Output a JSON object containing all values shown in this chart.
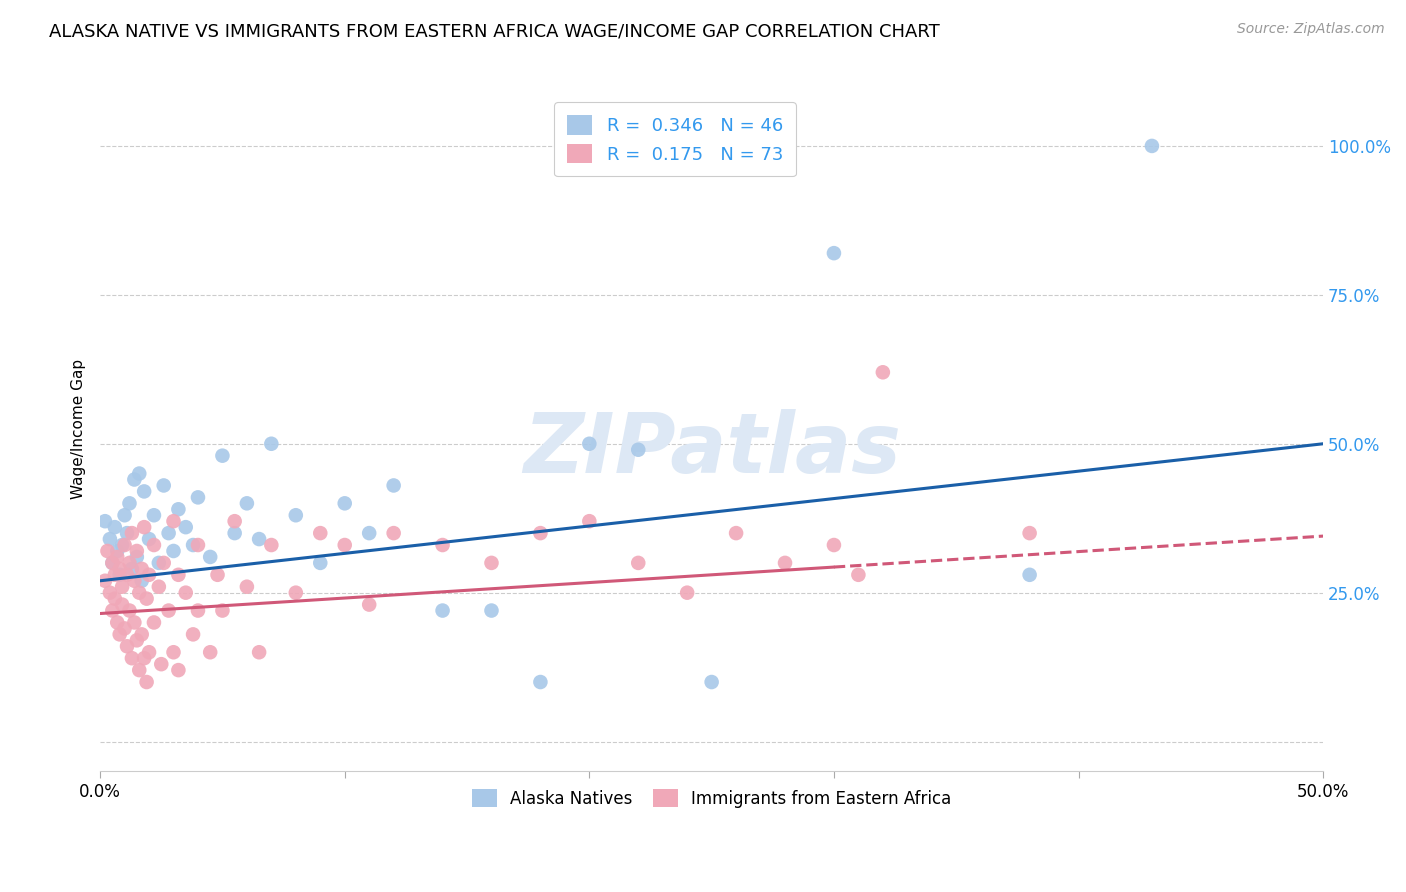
{
  "title": "ALASKA NATIVE VS IMMIGRANTS FROM EASTERN AFRICA WAGE/INCOME GAP CORRELATION CHART",
  "source": "Source: ZipAtlas.com",
  "ylabel": "Wage/Income Gap",
  "watermark": "ZIPatlas",
  "series1": {
    "label": "Alaska Natives",
    "color": "#a8c8e8",
    "line_color": "#1a5fa8",
    "R": 0.346,
    "N": 46,
    "line_start_y": 0.27,
    "line_end_y": 0.5,
    "points": [
      [
        0.002,
        0.37
      ],
      [
        0.004,
        0.34
      ],
      [
        0.005,
        0.3
      ],
      [
        0.006,
        0.36
      ],
      [
        0.007,
        0.32
      ],
      [
        0.008,
        0.28
      ],
      [
        0.009,
        0.33
      ],
      [
        0.01,
        0.38
      ],
      [
        0.011,
        0.35
      ],
      [
        0.012,
        0.4
      ],
      [
        0.013,
        0.29
      ],
      [
        0.014,
        0.44
      ],
      [
        0.015,
        0.31
      ],
      [
        0.016,
        0.45
      ],
      [
        0.017,
        0.27
      ],
      [
        0.018,
        0.42
      ],
      [
        0.02,
        0.34
      ],
      [
        0.022,
        0.38
      ],
      [
        0.024,
        0.3
      ],
      [
        0.026,
        0.43
      ],
      [
        0.028,
        0.35
      ],
      [
        0.03,
        0.32
      ],
      [
        0.032,
        0.39
      ],
      [
        0.035,
        0.36
      ],
      [
        0.038,
        0.33
      ],
      [
        0.04,
        0.41
      ],
      [
        0.045,
        0.31
      ],
      [
        0.05,
        0.48
      ],
      [
        0.055,
        0.35
      ],
      [
        0.06,
        0.4
      ],
      [
        0.065,
        0.34
      ],
      [
        0.07,
        0.5
      ],
      [
        0.08,
        0.38
      ],
      [
        0.09,
        0.3
      ],
      [
        0.1,
        0.4
      ],
      [
        0.11,
        0.35
      ],
      [
        0.12,
        0.43
      ],
      [
        0.14,
        0.22
      ],
      [
        0.16,
        0.22
      ],
      [
        0.18,
        0.1
      ],
      [
        0.2,
        0.5
      ],
      [
        0.22,
        0.49
      ],
      [
        0.25,
        0.1
      ],
      [
        0.3,
        0.82
      ],
      [
        0.38,
        0.28
      ],
      [
        0.43,
        1.0
      ]
    ]
  },
  "series2": {
    "label": "Immigrants from Eastern Africa",
    "color": "#f0a8b8",
    "line_color": "#d05878",
    "R": 0.175,
    "N": 73,
    "line_start_y": 0.215,
    "line_end_y": 0.345,
    "points": [
      [
        0.002,
        0.27
      ],
      [
        0.003,
        0.32
      ],
      [
        0.004,
        0.25
      ],
      [
        0.005,
        0.3
      ],
      [
        0.005,
        0.22
      ],
      [
        0.006,
        0.28
      ],
      [
        0.006,
        0.24
      ],
      [
        0.007,
        0.31
      ],
      [
        0.007,
        0.2
      ],
      [
        0.008,
        0.29
      ],
      [
        0.008,
        0.18
      ],
      [
        0.009,
        0.26
      ],
      [
        0.009,
        0.23
      ],
      [
        0.01,
        0.33
      ],
      [
        0.01,
        0.19
      ],
      [
        0.011,
        0.28
      ],
      [
        0.011,
        0.16
      ],
      [
        0.012,
        0.3
      ],
      [
        0.012,
        0.22
      ],
      [
        0.013,
        0.35
      ],
      [
        0.013,
        0.14
      ],
      [
        0.014,
        0.27
      ],
      [
        0.014,
        0.2
      ],
      [
        0.015,
        0.32
      ],
      [
        0.015,
        0.17
      ],
      [
        0.016,
        0.25
      ],
      [
        0.016,
        0.12
      ],
      [
        0.017,
        0.29
      ],
      [
        0.017,
        0.18
      ],
      [
        0.018,
        0.36
      ],
      [
        0.018,
        0.14
      ],
      [
        0.019,
        0.24
      ],
      [
        0.019,
        0.1
      ],
      [
        0.02,
        0.28
      ],
      [
        0.02,
        0.15
      ],
      [
        0.022,
        0.33
      ],
      [
        0.022,
        0.2
      ],
      [
        0.024,
        0.26
      ],
      [
        0.025,
        0.13
      ],
      [
        0.026,
        0.3
      ],
      [
        0.028,
        0.22
      ],
      [
        0.03,
        0.37
      ],
      [
        0.03,
        0.15
      ],
      [
        0.032,
        0.28
      ],
      [
        0.032,
        0.12
      ],
      [
        0.035,
        0.25
      ],
      [
        0.038,
        0.18
      ],
      [
        0.04,
        0.33
      ],
      [
        0.04,
        0.22
      ],
      [
        0.045,
        0.15
      ],
      [
        0.048,
        0.28
      ],
      [
        0.05,
        0.22
      ],
      [
        0.055,
        0.37
      ],
      [
        0.06,
        0.26
      ],
      [
        0.065,
        0.15
      ],
      [
        0.07,
        0.33
      ],
      [
        0.08,
        0.25
      ],
      [
        0.09,
        0.35
      ],
      [
        0.1,
        0.33
      ],
      [
        0.11,
        0.23
      ],
      [
        0.12,
        0.35
      ],
      [
        0.14,
        0.33
      ],
      [
        0.16,
        0.3
      ],
      [
        0.18,
        0.35
      ],
      [
        0.2,
        0.37
      ],
      [
        0.22,
        0.3
      ],
      [
        0.24,
        0.25
      ],
      [
        0.26,
        0.35
      ],
      [
        0.28,
        0.3
      ],
      [
        0.3,
        0.33
      ],
      [
        0.31,
        0.28
      ],
      [
        0.32,
        0.62
      ],
      [
        0.38,
        0.35
      ]
    ]
  },
  "xlim": [
    0.0,
    0.5
  ],
  "ylim": [
    -0.05,
    1.1
  ],
  "yticks": [
    0.0,
    0.25,
    0.5,
    0.75,
    1.0
  ],
  "yticklabels": [
    "",
    "25.0%",
    "50.0%",
    "75.0%",
    "100.0%"
  ],
  "background_color": "#ffffff",
  "grid_color": "#cccccc",
  "title_fontsize": 13,
  "source_fontsize": 10,
  "watermark_color": "#dde8f5",
  "watermark_fontsize": 60
}
